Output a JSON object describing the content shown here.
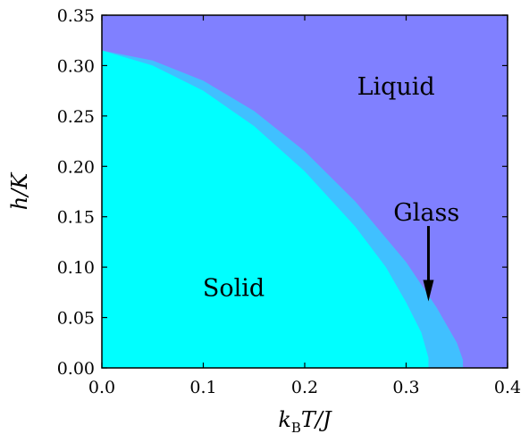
{
  "chart_data": {
    "type": "area",
    "xlim": [
      0.0,
      0.4
    ],
    "ylim": [
      0.0,
      0.35
    ],
    "xticks": [
      "0.0",
      "0.1",
      "0.2",
      "0.3",
      "0.4"
    ],
    "yticks": [
      "0.00",
      "0.05",
      "0.10",
      "0.15",
      "0.20",
      "0.25",
      "0.30",
      "0.35"
    ],
    "xlabel": {
      "main": "k",
      "sub": "B",
      "rest": "T/J"
    },
    "ylabel": "h/K",
    "grid": false,
    "regions": [
      {
        "name": "Liquid",
        "color": "#8080ff"
      },
      {
        "name": "Glass",
        "color": "#40c0ff"
      },
      {
        "name": "Solid",
        "color": "#00ffff"
      }
    ],
    "boundaries": {
      "glass_liquid": {
        "x": [
          0.0,
          0.05,
          0.1,
          0.15,
          0.2,
          0.25,
          0.3,
          0.33,
          0.35,
          0.356,
          0.356
        ],
        "y": [
          0.315,
          0.305,
          0.285,
          0.255,
          0.215,
          0.165,
          0.105,
          0.06,
          0.025,
          0.008,
          0.0
        ]
      },
      "solid_glass": {
        "x": [
          0.0,
          0.05,
          0.1,
          0.15,
          0.2,
          0.25,
          0.28,
          0.3,
          0.315,
          0.322,
          0.322
        ],
        "y": [
          0.315,
          0.3,
          0.275,
          0.24,
          0.195,
          0.14,
          0.1,
          0.065,
          0.035,
          0.01,
          0.0
        ]
      }
    },
    "annotations": [
      {
        "text": "Liquid",
        "x": 0.29,
        "y": 0.28
      },
      {
        "text": "Glass",
        "x": 0.32,
        "y": 0.155,
        "arrow_to": [
          0.322,
          0.066
        ]
      },
      {
        "text": "Solid",
        "x": 0.13,
        "y": 0.08
      }
    ]
  }
}
